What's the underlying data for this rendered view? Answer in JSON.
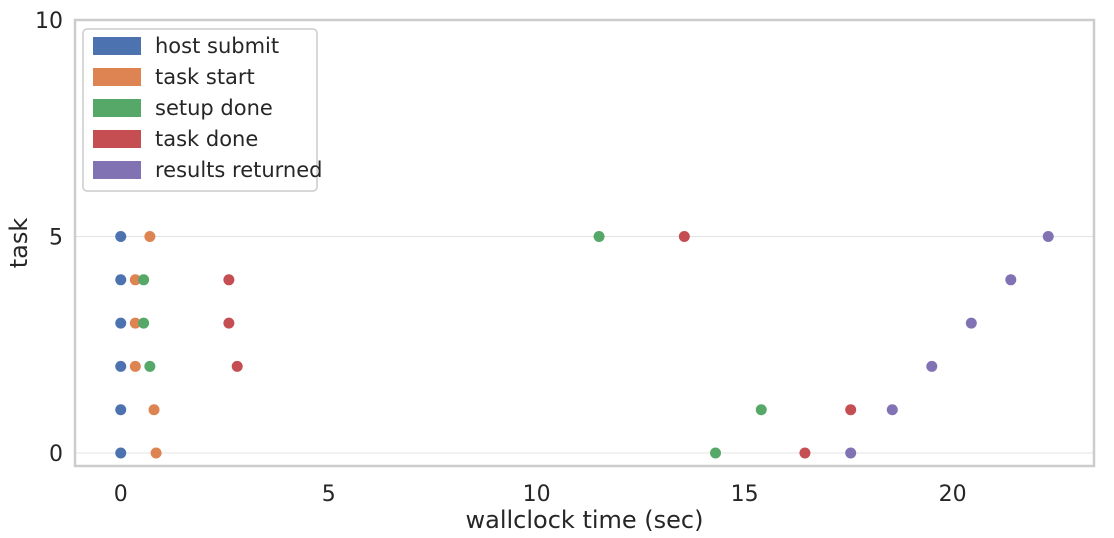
{
  "chart_data": {
    "type": "scatter",
    "xlabel": "wallclock time (sec)",
    "ylabel": "task",
    "xlim": [
      -1.1,
      23.4
    ],
    "ylim": [
      -0.3,
      10
    ],
    "xticks": [
      0,
      5,
      10,
      15,
      20
    ],
    "yticks": [
      0,
      5,
      10
    ],
    "grid": "horizontal",
    "legend": "top-left",
    "series": [
      {
        "name": "host submit",
        "color": "#4c72b0",
        "points": [
          [
            0,
            0
          ],
          [
            0,
            1
          ],
          [
            0,
            2
          ],
          [
            0,
            3
          ],
          [
            0,
            4
          ],
          [
            0,
            5
          ]
        ]
      },
      {
        "name": "task start",
        "color": "#dd8452",
        "points": [
          [
            0.85,
            0
          ],
          [
            0.8,
            1
          ],
          [
            0.35,
            2
          ],
          [
            0.35,
            3
          ],
          [
            0.35,
            4
          ],
          [
            0.7,
            5
          ]
        ]
      },
      {
        "name": "setup done",
        "color": "#55a868",
        "points": [
          [
            14.3,
            0
          ],
          [
            15.4,
            1
          ],
          [
            0.7,
            2
          ],
          [
            0.55,
            3
          ],
          [
            0.55,
            4
          ],
          [
            11.5,
            5
          ]
        ]
      },
      {
        "name": "task done",
        "color": "#c44e52",
        "points": [
          [
            16.45,
            0
          ],
          [
            17.55,
            1
          ],
          [
            2.8,
            2
          ],
          [
            2.6,
            3
          ],
          [
            2.6,
            4
          ],
          [
            13.55,
            5
          ]
        ]
      },
      {
        "name": "results returned",
        "color": "#8172b3",
        "points": [
          [
            17.55,
            0
          ],
          [
            18.55,
            1
          ],
          [
            19.5,
            2
          ],
          [
            20.45,
            3
          ],
          [
            21.4,
            4
          ],
          [
            22.3,
            5
          ]
        ]
      }
    ]
  }
}
